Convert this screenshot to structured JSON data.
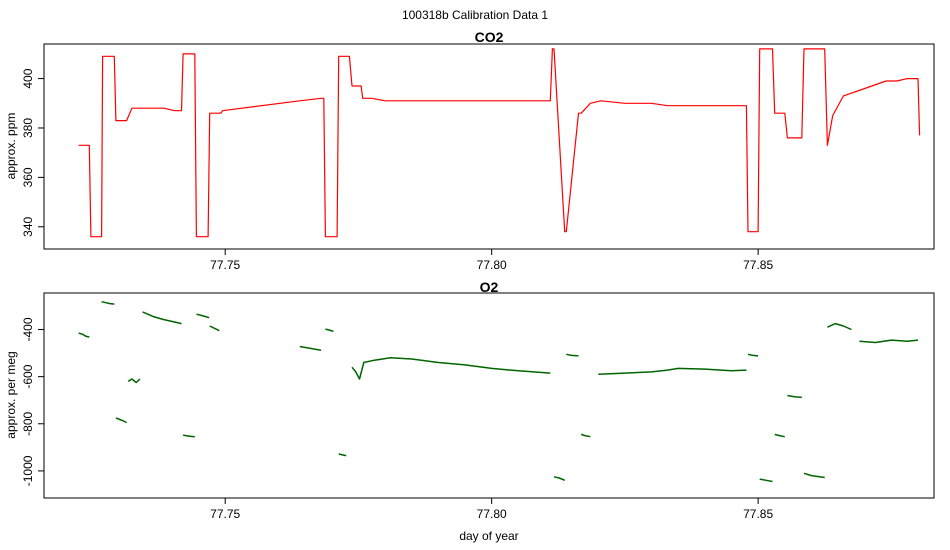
{
  "figure": {
    "title": "100318b   Calibration Data 1"
  },
  "chart_data": [
    {
      "type": "line",
      "title": "CO2",
      "xlabel": "",
      "ylabel": "approx. ppm",
      "xlim": [
        77.716,
        77.883
      ],
      "ylim": [
        331,
        414
      ],
      "xticks": [
        77.75,
        77.8,
        77.85
      ],
      "xtick_labels": [
        "77.75",
        "77.80",
        "77.85"
      ],
      "yticks": [
        340,
        360,
        380,
        400
      ],
      "ytick_labels": [
        "340",
        "360",
        "380",
        "400"
      ],
      "color": "#ff0000",
      "series": [
        {
          "x": [
            77.7225,
            77.7245,
            77.7248,
            77.7268,
            77.727,
            77.7292,
            77.7295,
            77.7315,
            77.7325,
            77.7345,
            77.7365,
            77.7385,
            77.7405,
            77.7418,
            77.7421,
            77.7443,
            77.7446,
            77.7468,
            77.7471,
            77.7492,
            77.7495,
            77.764,
            77.768,
            77.7685,
            77.7688,
            77.771,
            77.7713,
            77.7733,
            77.7738,
            77.7755,
            77.7758,
            77.7775,
            77.78,
            77.785,
            77.79,
            77.795,
            77.8,
            77.805,
            77.811,
            77.8114,
            77.8117,
            77.8137,
            77.814,
            77.8163,
            77.8168,
            77.8185,
            77.8205,
            77.825,
            77.83,
            77.833,
            77.84,
            77.845,
            77.8475,
            77.8478,
            77.8481,
            77.85,
            77.8503,
            77.8527,
            77.8531,
            77.855,
            77.8555,
            77.8582,
            77.8586,
            77.8625,
            77.863,
            77.864,
            77.866,
            77.87,
            77.874,
            77.876,
            77.878,
            77.88,
            77.8803
          ],
          "y": [
            373,
            373,
            336,
            336,
            409,
            409,
            383,
            383,
            388,
            388,
            388,
            388,
            387,
            387,
            410,
            410,
            336,
            336,
            386,
            386,
            387,
            391,
            392,
            392,
            336,
            336,
            409,
            409,
            397,
            397,
            392,
            392,
            391,
            391,
            391,
            391,
            391,
            391,
            391,
            412,
            412,
            338,
            338,
            386,
            386,
            390,
            391,
            390,
            390,
            389,
            389,
            389,
            389,
            389,
            338,
            338,
            412,
            412,
            386,
            386,
            376,
            376,
            412,
            412,
            373,
            385,
            393,
            396,
            399,
            399,
            400,
            400,
            377
          ]
        }
      ]
    },
    {
      "type": "scatter",
      "title": "O2",
      "xlabel": "day of year",
      "ylabel": "approx. per meg",
      "xlim": [
        77.716,
        77.883
      ],
      "ylim": [
        -1115,
        -245
      ],
      "xticks": [
        77.75,
        77.8,
        77.85
      ],
      "xtick_labels": [
        "77.75",
        "77.80",
        "77.85"
      ],
      "yticks": [
        -1000,
        -800,
        -600,
        -400
      ],
      "ytick_labels": [
        "-1000",
        "-800",
        "-600",
        "-400"
      ],
      "color": "#006400",
      "series": [
        {
          "x": [
            77.7225,
            77.7232,
            77.7238,
            77.7245
          ],
          "y": [
            -415,
            -420,
            -428,
            -432
          ]
        },
        {
          "x": [
            77.7268,
            77.7276,
            77.7284,
            77.7292
          ],
          "y": [
            -282,
            -286,
            -290,
            -292
          ]
        },
        {
          "x": [
            77.7295,
            77.7302,
            77.7309,
            77.7315
          ],
          "y": [
            -775,
            -782,
            -788,
            -795
          ]
        },
        {
          "x": [
            77.7318,
            77.7325,
            77.7333,
            77.734
          ],
          "y": [
            -620,
            -610,
            -625,
            -610
          ]
        },
        {
          "x": [
            77.7345,
            77.7365,
            77.7385,
            77.7405,
            77.7418
          ],
          "y": [
            -325,
            -345,
            -358,
            -368,
            -375
          ]
        },
        {
          "x": [
            77.7421,
            77.743,
            77.7443
          ],
          "y": [
            -848,
            -852,
            -855
          ]
        },
        {
          "x": [
            77.7446,
            77.7455,
            77.7463,
            77.747
          ],
          "y": [
            -335,
            -340,
            -345,
            -350
          ]
        },
        {
          "x": [
            77.7471,
            77.748,
            77.7489
          ],
          "y": [
            -385,
            -395,
            -405
          ]
        },
        {
          "x": [
            77.764,
            77.766,
            77.768
          ],
          "y": [
            -472,
            -480,
            -488
          ]
        },
        {
          "x": [
            77.7688,
            77.7695,
            77.7703
          ],
          "y": [
            -398,
            -402,
            -408
          ]
        },
        {
          "x": [
            77.7713,
            77.772,
            77.7727
          ],
          "y": [
            -928,
            -932,
            -935
          ]
        },
        {
          "x": [
            77.7738,
            77.7745,
            77.7752,
            77.776,
            77.778,
            77.781,
            77.785,
            77.79,
            77.795,
            77.8,
            77.805,
            77.811
          ],
          "y": [
            -560,
            -580,
            -610,
            -540,
            -530,
            -520,
            -525,
            -540,
            -550,
            -565,
            -575,
            -585
          ]
        },
        {
          "x": [
            77.8117,
            77.8127,
            77.8137
          ],
          "y": [
            -1025,
            -1030,
            -1040
          ]
        },
        {
          "x": [
            77.814,
            77.815,
            77.8163
          ],
          "y": [
            -505,
            -510,
            -512
          ]
        },
        {
          "x": [
            77.8168,
            77.8175,
            77.8185
          ],
          "y": [
            -845,
            -850,
            -855
          ]
        },
        {
          "x": [
            77.82,
            77.825,
            77.83,
            77.833,
            77.835,
            77.84,
            77.845,
            77.8478
          ],
          "y": [
            -590,
            -585,
            -580,
            -572,
            -565,
            -568,
            -575,
            -572
          ]
        },
        {
          "x": [
            77.8481,
            77.849,
            77.85
          ],
          "y": [
            -505,
            -510,
            -512
          ]
        },
        {
          "x": [
            77.8503,
            77.8515,
            77.8527
          ],
          "y": [
            -1035,
            -1040,
            -1045
          ]
        },
        {
          "x": [
            77.8531,
            77.854,
            77.855
          ],
          "y": [
            -845,
            -850,
            -855
          ]
        },
        {
          "x": [
            77.8555,
            77.8568,
            77.8582
          ],
          "y": [
            -680,
            -685,
            -688
          ]
        },
        {
          "x": [
            77.8586,
            77.86,
            77.8615,
            77.8625
          ],
          "y": [
            -1010,
            -1020,
            -1025,
            -1028
          ]
        },
        {
          "x": [
            77.863,
            77.8645,
            77.866,
            77.8675
          ],
          "y": [
            -390,
            -375,
            -385,
            -400
          ]
        },
        {
          "x": [
            77.869,
            77.872,
            77.875,
            77.878,
            77.88
          ],
          "y": [
            -450,
            -455,
            -445,
            -450,
            -445
          ]
        }
      ]
    }
  ]
}
